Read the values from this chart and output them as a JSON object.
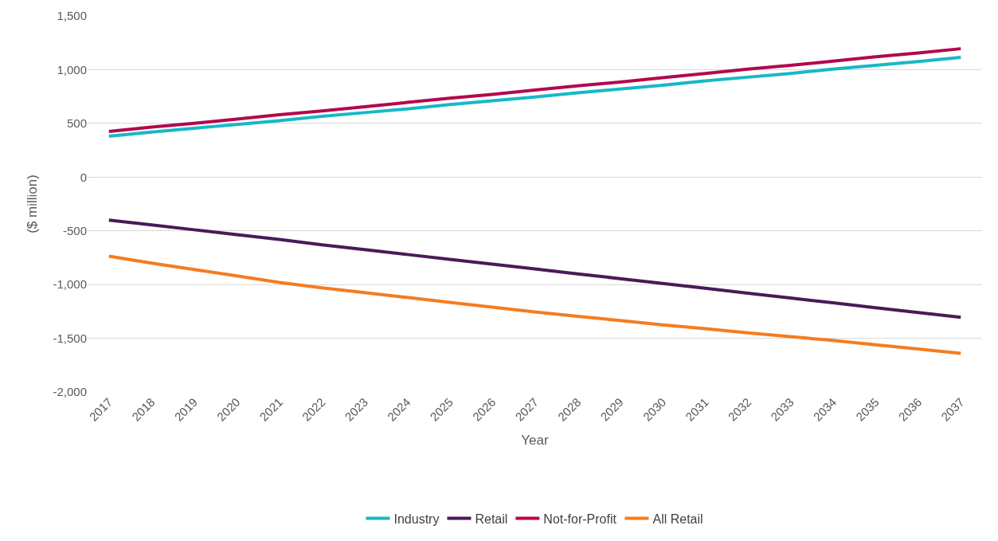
{
  "chart_data": {
    "type": "line",
    "xlabel": "Year",
    "ylabel": "($ million)",
    "categories": [
      "2017",
      "2018",
      "2019",
      "2020",
      "2021",
      "2022",
      "2023",
      "2024",
      "2025",
      "2026",
      "2027",
      "2028",
      "2029",
      "2030",
      "2031",
      "2032",
      "2033",
      "2034",
      "2035",
      "2036",
      "2037"
    ],
    "series": [
      {
        "name": "Industry",
        "color": "#17b8c8",
        "values": [
          380,
          420,
          455,
          490,
          525,
          565,
          600,
          635,
          675,
          710,
          745,
          785,
          820,
          855,
          895,
          930,
          965,
          1005,
          1040,
          1075,
          1115
        ]
      },
      {
        "name": "Retail",
        "color": "#4a1a57",
        "values": [
          -400,
          -445,
          -490,
          -535,
          -580,
          -630,
          -675,
          -720,
          -765,
          -810,
          -855,
          -900,
          -945,
          -990,
          -1035,
          -1080,
          -1125,
          -1170,
          -1215,
          -1260,
          -1305
        ]
      },
      {
        "name": "Not-for-Profit",
        "color": "#b3084d",
        "values": [
          425,
          465,
          500,
          540,
          580,
          615,
          655,
          695,
          735,
          770,
          810,
          850,
          885,
          925,
          965,
          1005,
          1040,
          1080,
          1120,
          1155,
          1195
        ]
      },
      {
        "name": "All Retail",
        "color": "#f47c20",
        "values": [
          -735,
          -800,
          -860,
          -920,
          -980,
          -1030,
          -1075,
          -1120,
          -1165,
          -1210,
          -1255,
          -1295,
          -1335,
          -1375,
          -1410,
          -1450,
          -1485,
          -1520,
          -1560,
          -1600,
          -1640
        ]
      }
    ],
    "ylim": [
      -2000,
      1500
    ],
    "yticks": [
      {
        "value": -2000,
        "label": "-2,000"
      },
      {
        "value": -1500,
        "label": "-1,500"
      },
      {
        "value": -1000,
        "label": "-1,000"
      },
      {
        "value": -500,
        "label": "-500"
      },
      {
        "value": 0,
        "label": "0"
      },
      {
        "value": 500,
        "label": "500"
      },
      {
        "value": 1000,
        "label": "1,000"
      },
      {
        "value": 1500,
        "label": "1,500"
      }
    ],
    "grid": "y",
    "legend": "bottom",
    "marker": "none",
    "line_style": "solid"
  }
}
